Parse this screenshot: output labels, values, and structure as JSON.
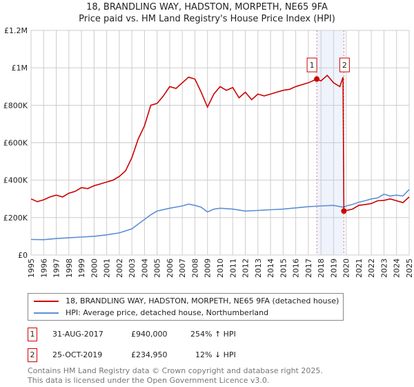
{
  "header": {
    "title": "18, BRANDLING WAY, HADSTON, MORPETH, NE65 9FA",
    "subtitle": "Price paid vs. HM Land Registry's House Price Index (HPI)"
  },
  "chart_data": {
    "type": "line",
    "title": "18, BRANDLING WAY, HADSTON, MORPETH, NE65 9FA",
    "xlim": [
      1995,
      2025
    ],
    "ylim": [
      0,
      1200000
    ],
    "grid": true,
    "x_ticks": [
      "1995",
      "1996",
      "1997",
      "1998",
      "1999",
      "2000",
      "2001",
      "2002",
      "2003",
      "2004",
      "2005",
      "2006",
      "2007",
      "2008",
      "2009",
      "2010",
      "2011",
      "2012",
      "2013",
      "2014",
      "2015",
      "2016",
      "2017",
      "2018",
      "2019",
      "2020",
      "2021",
      "2022",
      "2023",
      "2024",
      "2025"
    ],
    "y_ticks": [
      {
        "v": 0,
        "label": "£0"
      },
      {
        "v": 200000,
        "label": "£200K"
      },
      {
        "v": 400000,
        "label": "£400K"
      },
      {
        "v": 600000,
        "label": "£600K"
      },
      {
        "v": 800000,
        "label": "£800K"
      },
      {
        "v": 1000000,
        "label": "£1M"
      },
      {
        "v": 1200000,
        "label": "£1.2M"
      }
    ],
    "series": [
      {
        "name": "18, BRANDLING WAY, HADSTON, MORPETH, NE65 9FA (detached house)",
        "color": "#cc0000",
        "x": [
          1995,
          1995.5,
          1996,
          1996.5,
          1997,
          1997.5,
          1998,
          1998.5,
          1999,
          1999.5,
          2000,
          2000.5,
          2001,
          2001.5,
          2002,
          2002.5,
          2003,
          2003.5,
          2004,
          2004.5,
          2005,
          2005.5,
          2006,
          2006.5,
          2007,
          2007.5,
          2008,
          2008.5,
          2009,
          2009.5,
          2010,
          2010.5,
          2011,
          2011.5,
          2012,
          2012.5,
          2013,
          2013.5,
          2014,
          2014.5,
          2015,
          2015.5,
          2016,
          2016.5,
          2017,
          2017.67,
          2018,
          2018.5,
          2019,
          2019.5,
          2019.75,
          2019.82,
          2020.5,
          2021,
          2021.5,
          2022,
          2022.5,
          2023,
          2023.5,
          2024,
          2024.5,
          2025
        ],
        "y": [
          300000,
          285000,
          295000,
          310000,
          320000,
          310000,
          330000,
          340000,
          360000,
          355000,
          370000,
          380000,
          390000,
          400000,
          420000,
          450000,
          520000,
          620000,
          690000,
          800000,
          810000,
          850000,
          900000,
          890000,
          920000,
          950000,
          940000,
          870000,
          790000,
          860000,
          900000,
          880000,
          895000,
          840000,
          870000,
          830000,
          860000,
          850000,
          860000,
          870000,
          880000,
          885000,
          900000,
          910000,
          920000,
          940000,
          930000,
          960000,
          920000,
          900000,
          950000,
          234950,
          245000,
          265000,
          270000,
          275000,
          290000,
          292000,
          300000,
          290000,
          280000,
          310000
        ]
      },
      {
        "name": "HPI: Average price, detached house, Northumberland",
        "color": "#5b8fd6",
        "x": [
          1995,
          1996,
          1997,
          1998,
          1999,
          2000,
          2001,
          2002,
          2003,
          2004,
          2004.5,
          2005,
          2006,
          2007,
          2007.5,
          2008,
          2008.5,
          2009,
          2009.5,
          2010,
          2011,
          2012,
          2013,
          2014,
          2015,
          2016,
          2017,
          2018,
          2019,
          2019.8,
          2020,
          2020.5,
          2021,
          2021.5,
          2022,
          2022.5,
          2023,
          2023.5,
          2024,
          2024.5,
          2025
        ],
        "y": [
          83000,
          82000,
          88000,
          92000,
          96000,
          100000,
          108000,
          118000,
          140000,
          190000,
          215000,
          235000,
          250000,
          262000,
          272000,
          265000,
          255000,
          230000,
          245000,
          250000,
          245000,
          235000,
          238000,
          242000,
          245000,
          252000,
          258000,
          262000,
          265000,
          255000,
          262000,
          270000,
          282000,
          290000,
          300000,
          305000,
          325000,
          315000,
          320000,
          315000,
          350000
        ]
      }
    ],
    "sales": [
      {
        "label": "1",
        "x": 2017.67,
        "y": 940000
      },
      {
        "label": "2",
        "x": 2019.82,
        "y": 234950
      }
    ]
  },
  "legend": {
    "items": [
      {
        "label": "18, BRANDLING WAY, HADSTON, MORPETH, NE65 9FA (detached house)",
        "color": "#cc0000"
      },
      {
        "label": "HPI: Average price, detached house, Northumberland",
        "color": "#5b8fd6"
      }
    ]
  },
  "table": {
    "rows": [
      {
        "num": "1",
        "date": "31-AUG-2017",
        "price": "£940,000",
        "hpi": "254% ↑ HPI"
      },
      {
        "num": "2",
        "date": "25-OCT-2019",
        "price": "£234,950",
        "hpi": "12% ↓ HPI"
      }
    ]
  },
  "footer": {
    "line1": "Contains HM Land Registry data © Crown copyright and database right 2025.",
    "line2": "This data is licensed under the Open Government Licence v3.0."
  }
}
